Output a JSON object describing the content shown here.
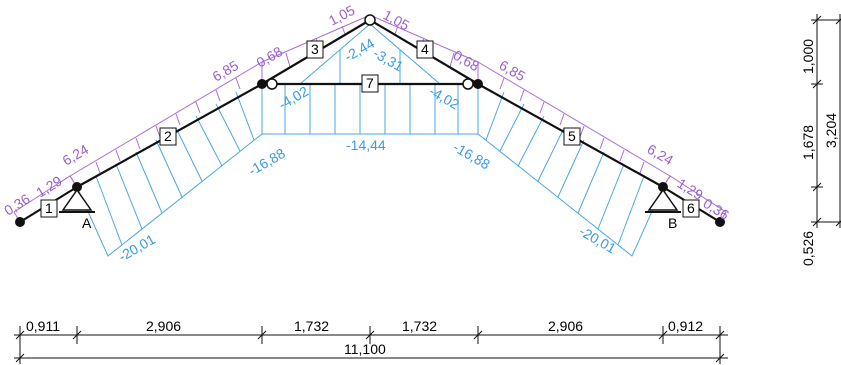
{
  "diagram": {
    "members": [
      {
        "id": "1",
        "label": "1"
      },
      {
        "id": "2",
        "label": "2"
      },
      {
        "id": "3",
        "label": "3"
      },
      {
        "id": "4",
        "label": "4"
      },
      {
        "id": "5",
        "label": "5"
      },
      {
        "id": "6",
        "label": "6"
      },
      {
        "id": "7",
        "label": "7"
      }
    ],
    "supports": {
      "left": "A",
      "right": "B"
    },
    "moment_labels_purple": [
      "0,36",
      "1,29",
      "6,24",
      "6,85",
      "0,68",
      "1,05",
      "1,05",
      "0,68",
      "6,85",
      "6,24",
      "1,29",
      "0,36"
    ],
    "moment_labels_blue": [
      "-20,01",
      "-16,88",
      "-4,02",
      "-2,44",
      "-3,31",
      "-14,44",
      "-4,02",
      "-16,88",
      "-20,01"
    ],
    "dimensions": {
      "bottom": [
        "0,911",
        "2,906",
        "1,732",
        "1,732",
        "2,906",
        "0,912"
      ],
      "total": "11,100",
      "right": [
        "1,000",
        "1,678",
        "3,204",
        "0,526"
      ]
    },
    "colors": {
      "member": "#111111",
      "moment_purple": "#9a5fd0",
      "moment_blue": "#3a9be0"
    }
  }
}
